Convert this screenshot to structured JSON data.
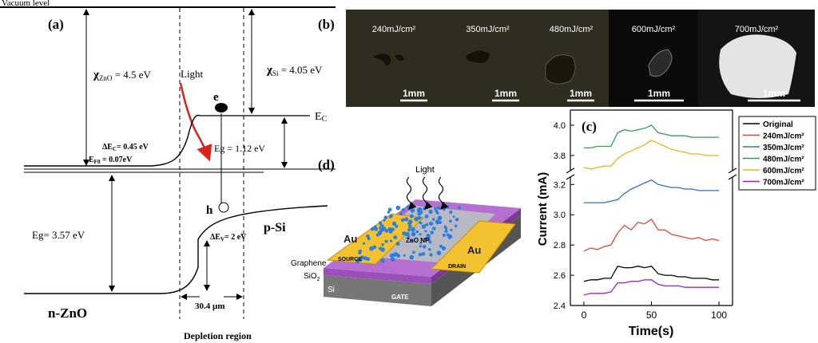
{
  "panel_a": {
    "label": "(a)",
    "vacuum_level": "Vacuum level",
    "chi_zno": {
      "symbol": "χ",
      "sub": "ZnO",
      "value": " = 4.5 eV"
    },
    "light": "Light",
    "electron": "e",
    "ec": {
      "symbol": "E",
      "sub": "C"
    },
    "chi_si": {
      "symbol": "χ",
      "sub": "Si",
      "value": " = 4.05 eV"
    },
    "delta_ec": {
      "symbol": "ΔE",
      "sub": "C",
      "value": "= 0.45 eV"
    },
    "ef0": {
      "symbol": "E",
      "sub": "F0",
      "value": " = 0.07eV"
    },
    "eg_si": "Eg = 1.12 eV",
    "hole": "h",
    "p_si": "p-Si",
    "eg_zno": "Eg= 3.57 eV",
    "delta_ev": {
      "symbol": "ΔE",
      "sub": "V",
      "value": "= 2 eV"
    },
    "n_zno": "n-ZnO",
    "width": "30.4 µm",
    "depletion": "Depletion region"
  },
  "panel_b": {
    "label": "(b)",
    "images": [
      {
        "fluence": "240mJ/cm²",
        "scale": "1mm"
      },
      {
        "fluence": "350mJ/cm²",
        "scale": "1mm"
      },
      {
        "fluence": "480mJ/cm²",
        "scale": "1mm"
      },
      {
        "fluence": "600mJ/cm²",
        "scale": "1mm"
      },
      {
        "fluence": "700mJ/cm²",
        "scale": "1mm"
      }
    ]
  },
  "panel_d": {
    "label": "(d)",
    "light": "Light",
    "au_left": "Au",
    "au_right": "Au",
    "zno_np": "ZnO NP",
    "source": "SOURCE",
    "drain": "DRAIN",
    "graphene": "Graphene",
    "sio2": {
      "symbol": "SiO",
      "sub": "2"
    },
    "si": "Si",
    "gate": "GATE"
  },
  "chart_data": {
    "type": "line",
    "label": "(c)",
    "x_label": "Time(s)",
    "y_label": "Current (mA)",
    "x": [
      0,
      5,
      10,
      15,
      20,
      25,
      30,
      35,
      40,
      45,
      50,
      55,
      60,
      65,
      70,
      75,
      80,
      85,
      90,
      95,
      100
    ],
    "series": [
      {
        "name": "Original",
        "color": "#000000",
        "values": [
          2.56,
          2.57,
          2.57,
          2.58,
          2.58,
          2.66,
          2.65,
          2.65,
          2.66,
          2.65,
          2.66,
          2.61,
          2.6,
          2.6,
          2.59,
          2.59,
          2.58,
          2.58,
          2.58,
          2.57,
          2.57
        ]
      },
      {
        "name": "240mJ/cm²",
        "color": "#e8443a",
        "values": [
          2.76,
          2.78,
          2.77,
          2.79,
          2.8,
          2.88,
          2.93,
          2.9,
          2.95,
          2.94,
          2.97,
          2.9,
          2.9,
          2.87,
          2.86,
          2.85,
          2.84,
          2.85,
          2.83,
          2.84,
          2.83
        ]
      },
      {
        "name": "350mJ/cm²",
        "color": "#2f6fd6",
        "values": [
          3.08,
          3.08,
          3.08,
          3.08,
          3.09,
          3.1,
          3.14,
          3.17,
          3.19,
          3.21,
          3.23,
          3.2,
          3.19,
          3.18,
          3.18,
          3.17,
          3.17,
          3.16,
          3.16,
          3.16,
          3.16
        ]
      },
      {
        "name": "480mJ/cm²",
        "color": "#2ca05a",
        "values": [
          3.85,
          3.85,
          3.86,
          3.86,
          3.86,
          3.95,
          3.97,
          3.96,
          3.97,
          3.98,
          4.0,
          3.95,
          3.94,
          3.93,
          3.93,
          3.93,
          3.92,
          3.92,
          3.92,
          3.92,
          3.92
        ]
      },
      {
        "name": "600mJ/cm²",
        "color": "#e8b61e",
        "values": [
          3.72,
          3.71,
          3.72,
          3.73,
          3.73,
          3.78,
          3.81,
          3.83,
          3.85,
          3.87,
          3.9,
          3.88,
          3.86,
          3.84,
          3.83,
          3.82,
          3.81,
          3.81,
          3.8,
          3.8,
          3.8
        ]
      },
      {
        "name": "700mJ/cm²",
        "color": "#a020c8",
        "values": [
          2.47,
          2.48,
          2.48,
          2.48,
          2.49,
          2.55,
          2.55,
          2.56,
          2.56,
          2.57,
          2.57,
          2.54,
          2.53,
          2.53,
          2.53,
          2.52,
          2.52,
          2.52,
          2.52,
          2.52,
          2.52
        ]
      }
    ],
    "xlim": [
      -10,
      110
    ],
    "xticks": [
      0,
      50,
      100
    ],
    "ylim": [
      2.4,
      4.1
    ],
    "axis_break": [
      3.25,
      3.7
    ],
    "yticks": [
      2.4,
      2.6,
      2.8,
      {
        "value": 3.0,
        "label": "3.0"
      },
      3.2,
      3.8,
      {
        "value": 4.0,
        "label": "4.0"
      }
    ],
    "legend": "right"
  }
}
